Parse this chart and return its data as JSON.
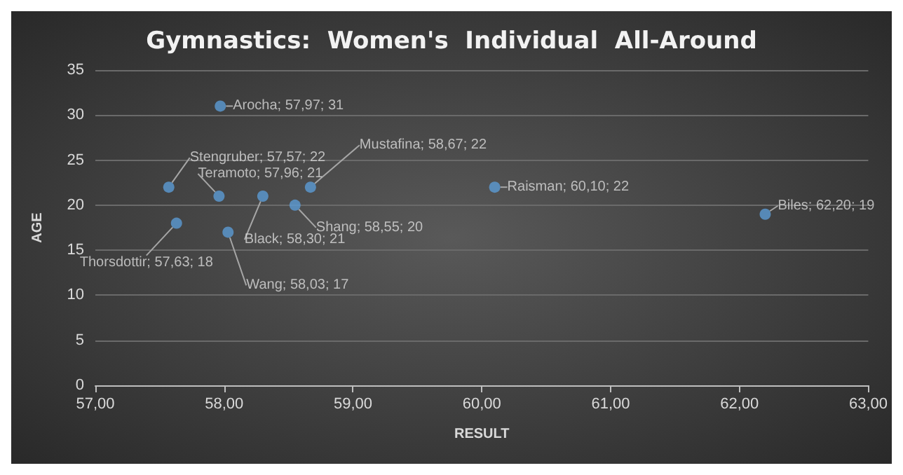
{
  "chart_data": {
    "type": "scatter",
    "title": "Gymnastics:  Women's  Individual  All-Around",
    "xlabel": "RESULT",
    "ylabel": "AGE",
    "x": [
      57.97,
      57.57,
      57.96,
      58.67,
      58.3,
      58.55,
      58.03,
      57.63,
      60.1,
      62.2
    ],
    "values": [
      31,
      22,
      21,
      22,
      21,
      20,
      17,
      18,
      22,
      19
    ],
    "value_labels": [
      "Arocha; 57,97; 31",
      "Stengruber; 57,57; 22",
      "Teramoto; 57,96; 21",
      "Mustafina; 58,67; 22",
      "Black; 58,30; 21",
      "Shang; 58,55; 20",
      "Wang; 58,03; 17",
      "Thorsdottir; 57,63; 18",
      "Raisman; 60,10; 22",
      "Biles; 62,20; 19"
    ],
    "color": "#5b9bd5",
    "marker": "circle",
    "grid": "y",
    "xlim": [
      57,
      63
    ],
    "xticks": [
      {
        "value": 57,
        "label": "57,00"
      },
      {
        "value": 58,
        "label": "58,00"
      },
      {
        "value": 59,
        "label": "59,00"
      },
      {
        "value": 60,
        "label": "60,00"
      },
      {
        "value": 61,
        "label": "61,00"
      },
      {
        "value": 62,
        "label": "62,00"
      },
      {
        "value": 63,
        "label": "63,00"
      }
    ],
    "ylim": [
      0,
      35
    ],
    "yticks": [
      0,
      5,
      10,
      15,
      20,
      25,
      30,
      35
    ]
  }
}
